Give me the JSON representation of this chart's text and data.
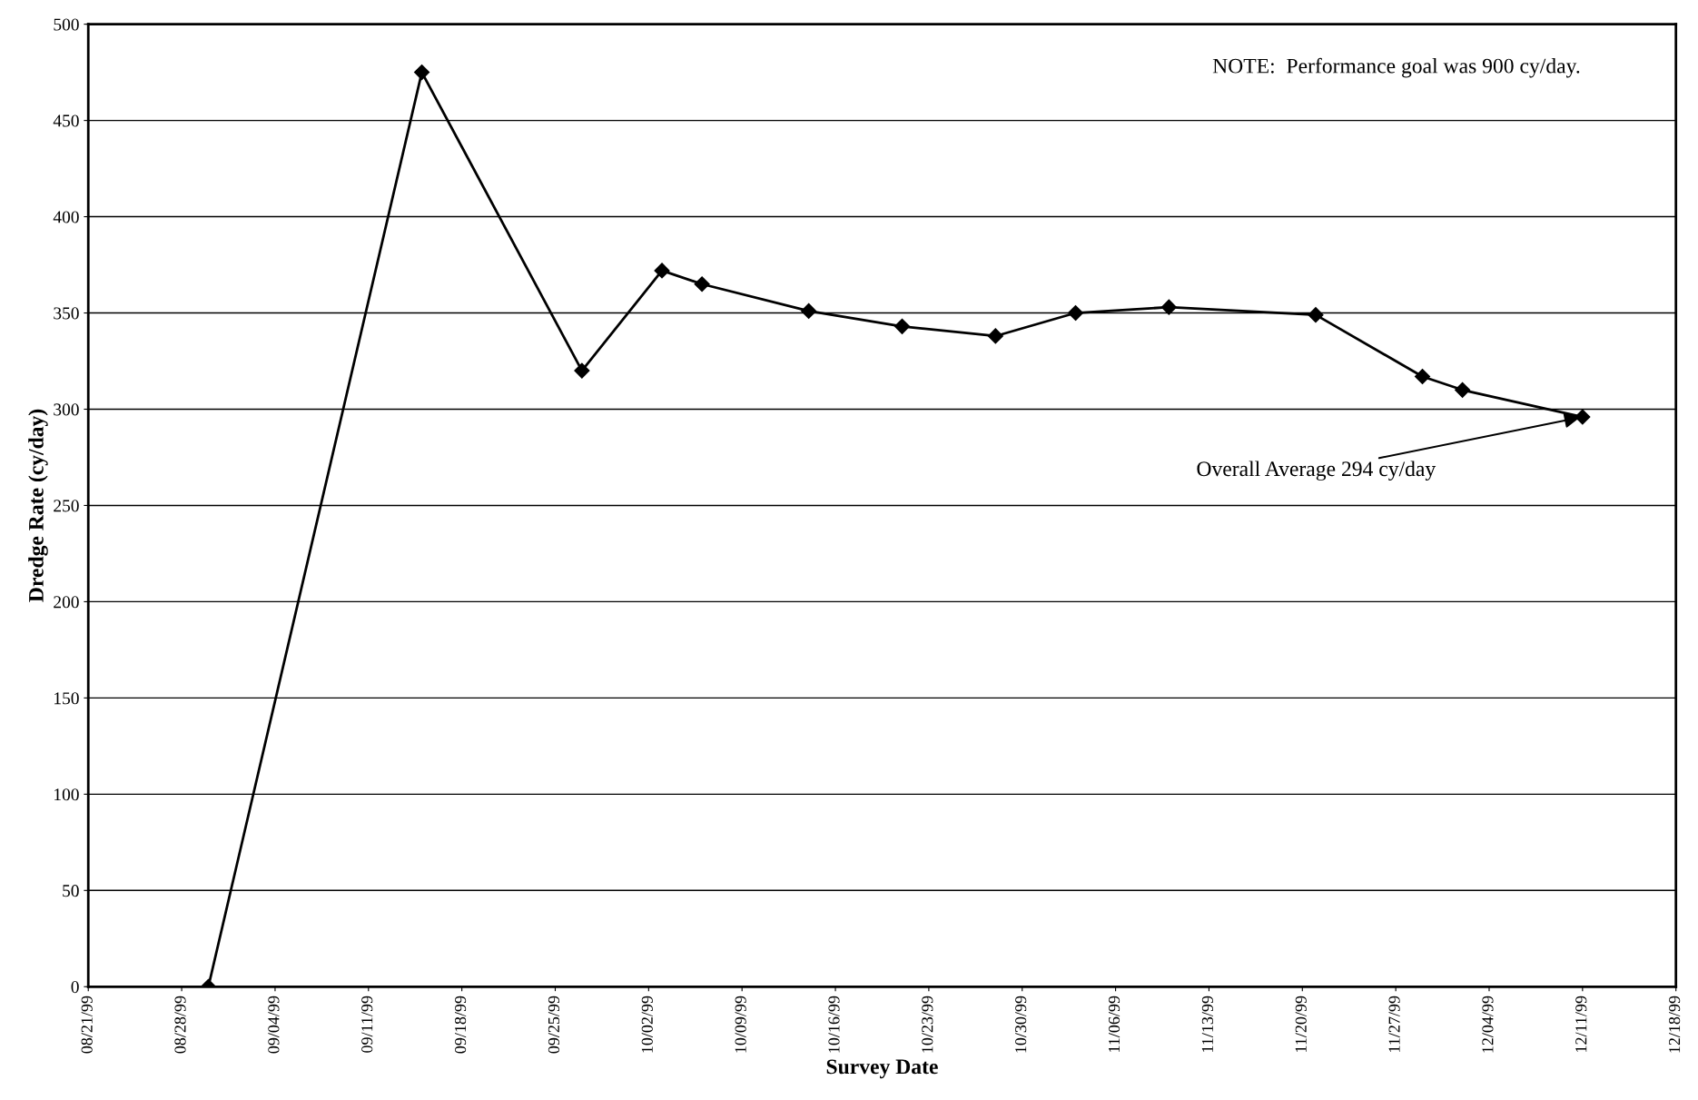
{
  "chart_data": {
    "type": "line",
    "xlabel": "Survey Date",
    "ylabel": "Dredge Rate (cy/day)",
    "x": [
      "1999-08-30",
      "1999-09-15",
      "1999-09-27",
      "1999-10-03",
      "1999-10-06",
      "1999-10-14",
      "1999-10-21",
      "1999-10-28",
      "1999-11-03",
      "1999-11-10",
      "1999-11-21",
      "1999-11-29",
      "1999-12-02",
      "1999-12-11"
    ],
    "series": [
      {
        "color": "#000000",
        "values": [
          0,
          475,
          320,
          372,
          365,
          351,
          343,
          338,
          350,
          353,
          349,
          317,
          310,
          296
        ]
      }
    ],
    "xlim": [
      "1999-08-21",
      "1999-12-18"
    ],
    "xticks": [
      {
        "value": "1999-08-21",
        "label": "08/21/99"
      },
      {
        "value": "1999-08-28",
        "label": "08/28/99"
      },
      {
        "value": "1999-09-04",
        "label": "09/04/99"
      },
      {
        "value": "1999-09-11",
        "label": "09/11/99"
      },
      {
        "value": "1999-09-18",
        "label": "09/18/99"
      },
      {
        "value": "1999-09-25",
        "label": "09/25/99"
      },
      {
        "value": "1999-10-02",
        "label": "10/02/99"
      },
      {
        "value": "1999-10-09",
        "label": "10/09/99"
      },
      {
        "value": "1999-10-16",
        "label": "10/16/99"
      },
      {
        "value": "1999-10-23",
        "label": "10/23/99"
      },
      {
        "value": "1999-10-30",
        "label": "10/30/99"
      },
      {
        "value": "1999-11-06",
        "label": "11/06/99"
      },
      {
        "value": "1999-11-13",
        "label": "11/13/99"
      },
      {
        "value": "1999-11-20",
        "label": "11/20/99"
      },
      {
        "value": "1999-11-27",
        "label": "11/27/99"
      },
      {
        "value": "1999-12-04",
        "label": "12/04/99"
      },
      {
        "value": "1999-12-11",
        "label": "12/11/99"
      },
      {
        "value": "1999-12-18",
        "label": "12/18/99"
      }
    ],
    "ylim": [
      0,
      500
    ],
    "yticks": [
      0,
      50,
      100,
      150,
      200,
      250,
      300,
      350,
      400,
      450,
      500
    ],
    "grid": "y",
    "marker": "diamond",
    "line_style": "solid",
    "annotations": [
      "NOTE:  Performance goal was 900 cy/day.",
      {
        "text": "Overall Average 294 cy/day",
        "x": "1999-12-11",
        "y": 296
      }
    ]
  }
}
